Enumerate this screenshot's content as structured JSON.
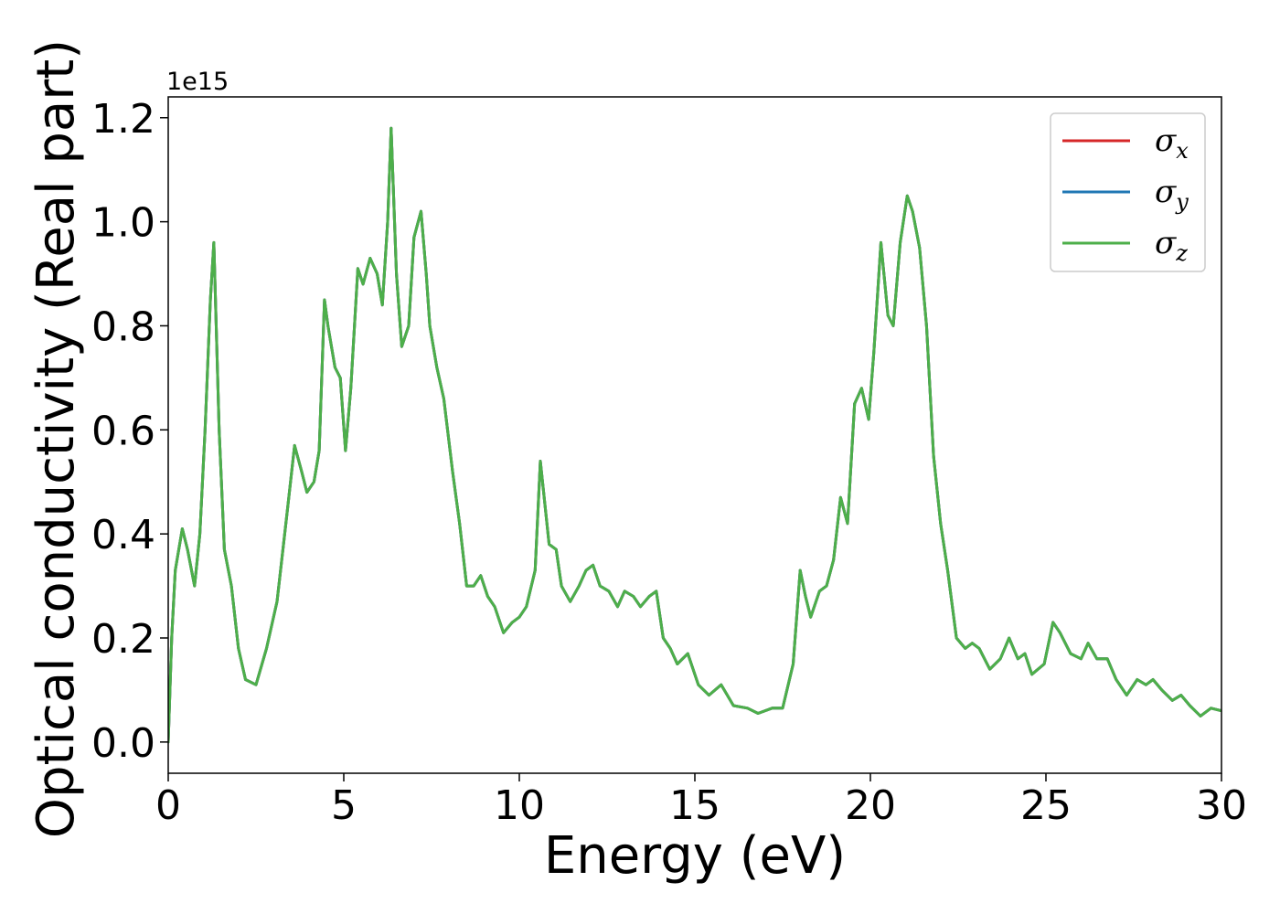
{
  "chart_data": {
    "type": "line",
    "xlabel": "Energy (eV)",
    "ylabel": "Optical conductivity (Real part)",
    "y_offset_label": "1e15",
    "y_scale_factor": 1000000000000000.0,
    "xlim": [
      0,
      30
    ],
    "ylim": [
      -0.06,
      1.24
    ],
    "x_ticks": [
      0,
      5,
      10,
      15,
      20,
      25,
      30
    ],
    "x_tick_labels": [
      "0",
      "5",
      "10",
      "15",
      "20",
      "25",
      "30"
    ],
    "y_ticks": [
      0.0,
      0.2,
      0.4,
      0.6,
      0.8,
      1.0,
      1.2
    ],
    "y_tick_labels": [
      "0.0",
      "0.2",
      "0.4",
      "0.6",
      "0.8",
      "1.0",
      "1.2"
    ],
    "grid": false,
    "legend_position": "top-right",
    "series": [
      {
        "name": "σx",
        "label_symbol": "σ",
        "label_sub": "x",
        "color": "#d62728",
        "x": [
          0,
          0.1,
          0.2,
          0.4,
          0.55,
          0.75,
          0.9,
          1.05,
          1.2,
          1.3,
          1.45,
          1.6,
          1.8,
          2.0,
          2.2,
          2.5,
          2.8,
          3.1,
          3.4,
          3.6,
          3.8,
          3.95,
          4.15,
          4.3,
          4.45,
          4.55,
          4.75,
          4.9,
          5.05,
          5.2,
          5.4,
          5.55,
          5.75,
          5.95,
          6.1,
          6.25,
          6.35,
          6.5,
          6.65,
          6.85,
          7.0,
          7.2,
          7.35,
          7.45,
          7.65,
          7.85,
          8.1,
          8.3,
          8.5,
          8.7,
          8.9,
          9.1,
          9.3,
          9.55,
          9.8,
          10.0,
          10.2,
          10.45,
          10.6,
          10.85,
          11.05,
          11.2,
          11.45,
          11.7,
          11.9,
          12.1,
          12.3,
          12.55,
          12.8,
          13.0,
          13.25,
          13.45,
          13.7,
          13.9,
          14.1,
          14.3,
          14.5,
          14.8,
          15.1,
          15.4,
          15.75,
          16.1,
          16.5,
          16.8,
          17.2,
          17.5,
          17.8,
          18.0,
          18.15,
          18.3,
          18.55,
          18.75,
          18.95,
          19.15,
          19.35,
          19.55,
          19.75,
          19.95,
          20.1,
          20.3,
          20.5,
          20.65,
          20.85,
          21.05,
          21.2,
          21.4,
          21.6,
          21.8,
          22.0,
          22.2,
          22.45,
          22.7,
          22.9,
          23.1,
          23.4,
          23.7,
          23.95,
          24.2,
          24.4,
          24.6,
          24.95,
          25.2,
          25.4,
          25.7,
          26.0,
          26.2,
          26.45,
          26.75,
          27.0,
          27.3,
          27.6,
          27.85,
          28.05,
          28.3,
          28.6,
          28.85,
          29.1,
          29.4,
          29.7,
          30.0
        ],
        "y": [
          0.0,
          0.2,
          0.33,
          0.41,
          0.37,
          0.3,
          0.4,
          0.6,
          0.85,
          0.96,
          0.6,
          0.37,
          0.3,
          0.18,
          0.12,
          0.11,
          0.18,
          0.27,
          0.45,
          0.57,
          0.52,
          0.48,
          0.5,
          0.56,
          0.85,
          0.8,
          0.72,
          0.7,
          0.56,
          0.68,
          0.91,
          0.88,
          0.93,
          0.9,
          0.84,
          1.0,
          1.18,
          0.9,
          0.76,
          0.8,
          0.97,
          1.02,
          0.9,
          0.8,
          0.72,
          0.66,
          0.52,
          0.42,
          0.3,
          0.3,
          0.32,
          0.28,
          0.26,
          0.21,
          0.23,
          0.24,
          0.26,
          0.33,
          0.54,
          0.38,
          0.37,
          0.3,
          0.27,
          0.3,
          0.33,
          0.34,
          0.3,
          0.29,
          0.26,
          0.29,
          0.28,
          0.26,
          0.28,
          0.29,
          0.2,
          0.18,
          0.15,
          0.17,
          0.11,
          0.09,
          0.11,
          0.07,
          0.065,
          0.055,
          0.065,
          0.065,
          0.15,
          0.33,
          0.28,
          0.24,
          0.29,
          0.3,
          0.35,
          0.47,
          0.42,
          0.65,
          0.68,
          0.62,
          0.75,
          0.96,
          0.82,
          0.8,
          0.96,
          1.05,
          1.02,
          0.95,
          0.8,
          0.55,
          0.42,
          0.33,
          0.2,
          0.18,
          0.19,
          0.18,
          0.14,
          0.16,
          0.2,
          0.16,
          0.17,
          0.13,
          0.15,
          0.23,
          0.21,
          0.17,
          0.16,
          0.19,
          0.16,
          0.16,
          0.12,
          0.09,
          0.12,
          0.11,
          0.12,
          0.1,
          0.08,
          0.09,
          0.07,
          0.05,
          0.065,
          0.06
        ]
      },
      {
        "name": "σy",
        "label_symbol": "σ",
        "label_sub": "y",
        "color": "#1f77b4",
        "x": [
          0,
          0.1,
          0.2,
          0.4,
          0.55,
          0.75,
          0.9,
          1.05,
          1.2,
          1.3,
          1.45,
          1.6,
          1.8,
          2.0,
          2.2,
          2.5,
          2.8,
          3.1,
          3.4,
          3.6,
          3.8,
          3.95,
          4.15,
          4.3,
          4.45,
          4.55,
          4.75,
          4.9,
          5.05,
          5.2,
          5.4,
          5.55,
          5.75,
          5.95,
          6.1,
          6.25,
          6.35,
          6.5,
          6.65,
          6.85,
          7.0,
          7.2,
          7.35,
          7.45,
          7.65,
          7.85,
          8.1,
          8.3,
          8.5,
          8.7,
          8.9,
          9.1,
          9.3,
          9.55,
          9.8,
          10.0,
          10.2,
          10.45,
          10.6,
          10.85,
          11.05,
          11.2,
          11.45,
          11.7,
          11.9,
          12.1,
          12.3,
          12.55,
          12.8,
          13.0,
          13.25,
          13.45,
          13.7,
          13.9,
          14.1,
          14.3,
          14.5,
          14.8,
          15.1,
          15.4,
          15.75,
          16.1,
          16.5,
          16.8,
          17.2,
          17.5,
          17.8,
          18.0,
          18.15,
          18.3,
          18.55,
          18.75,
          18.95,
          19.15,
          19.35,
          19.55,
          19.75,
          19.95,
          20.1,
          20.3,
          20.5,
          20.65,
          20.85,
          21.05,
          21.2,
          21.4,
          21.6,
          21.8,
          22.0,
          22.2,
          22.45,
          22.7,
          22.9,
          23.1,
          23.4,
          23.7,
          23.95,
          24.2,
          24.4,
          24.6,
          24.95,
          25.2,
          25.4,
          25.7,
          26.0,
          26.2,
          26.45,
          26.75,
          27.0,
          27.3,
          27.6,
          27.85,
          28.05,
          28.3,
          28.6,
          28.85,
          29.1,
          29.4,
          29.7,
          30.0
        ],
        "y": [
          0.0,
          0.2,
          0.33,
          0.41,
          0.37,
          0.3,
          0.4,
          0.6,
          0.85,
          0.96,
          0.6,
          0.37,
          0.3,
          0.18,
          0.12,
          0.11,
          0.18,
          0.27,
          0.45,
          0.57,
          0.52,
          0.48,
          0.5,
          0.56,
          0.85,
          0.8,
          0.72,
          0.7,
          0.56,
          0.68,
          0.91,
          0.88,
          0.93,
          0.9,
          0.84,
          1.0,
          1.18,
          0.9,
          0.76,
          0.8,
          0.97,
          1.02,
          0.9,
          0.8,
          0.72,
          0.66,
          0.52,
          0.42,
          0.3,
          0.3,
          0.32,
          0.28,
          0.26,
          0.21,
          0.23,
          0.24,
          0.26,
          0.33,
          0.54,
          0.38,
          0.37,
          0.3,
          0.27,
          0.3,
          0.33,
          0.34,
          0.3,
          0.29,
          0.26,
          0.29,
          0.28,
          0.26,
          0.28,
          0.29,
          0.2,
          0.18,
          0.15,
          0.17,
          0.11,
          0.09,
          0.11,
          0.07,
          0.065,
          0.055,
          0.065,
          0.065,
          0.15,
          0.33,
          0.28,
          0.24,
          0.29,
          0.3,
          0.35,
          0.47,
          0.42,
          0.65,
          0.68,
          0.62,
          0.75,
          0.96,
          0.82,
          0.8,
          0.96,
          1.05,
          1.02,
          0.95,
          0.8,
          0.55,
          0.42,
          0.33,
          0.2,
          0.18,
          0.19,
          0.18,
          0.14,
          0.16,
          0.2,
          0.16,
          0.17,
          0.13,
          0.15,
          0.23,
          0.21,
          0.17,
          0.16,
          0.19,
          0.16,
          0.16,
          0.12,
          0.09,
          0.12,
          0.11,
          0.12,
          0.1,
          0.08,
          0.09,
          0.07,
          0.05,
          0.065,
          0.06
        ]
      },
      {
        "name": "σz",
        "label_symbol": "σ",
        "label_sub": "z",
        "color": "#4daf4a",
        "x": [
          0,
          0.1,
          0.2,
          0.4,
          0.55,
          0.75,
          0.9,
          1.05,
          1.2,
          1.3,
          1.45,
          1.6,
          1.8,
          2.0,
          2.2,
          2.5,
          2.8,
          3.1,
          3.4,
          3.6,
          3.8,
          3.95,
          4.15,
          4.3,
          4.45,
          4.55,
          4.75,
          4.9,
          5.05,
          5.2,
          5.4,
          5.55,
          5.75,
          5.95,
          6.1,
          6.25,
          6.35,
          6.5,
          6.65,
          6.85,
          7.0,
          7.2,
          7.35,
          7.45,
          7.65,
          7.85,
          8.1,
          8.3,
          8.5,
          8.7,
          8.9,
          9.1,
          9.3,
          9.55,
          9.8,
          10.0,
          10.2,
          10.45,
          10.6,
          10.85,
          11.05,
          11.2,
          11.45,
          11.7,
          11.9,
          12.1,
          12.3,
          12.55,
          12.8,
          13.0,
          13.25,
          13.45,
          13.7,
          13.9,
          14.1,
          14.3,
          14.5,
          14.8,
          15.1,
          15.4,
          15.75,
          16.1,
          16.5,
          16.8,
          17.2,
          17.5,
          17.8,
          18.0,
          18.15,
          18.3,
          18.55,
          18.75,
          18.95,
          19.15,
          19.35,
          19.55,
          19.75,
          19.95,
          20.1,
          20.3,
          20.5,
          20.65,
          20.85,
          21.05,
          21.2,
          21.4,
          21.6,
          21.8,
          22.0,
          22.2,
          22.45,
          22.7,
          22.9,
          23.1,
          23.4,
          23.7,
          23.95,
          24.2,
          24.4,
          24.6,
          24.95,
          25.2,
          25.4,
          25.7,
          26.0,
          26.2,
          26.45,
          26.75,
          27.0,
          27.3,
          27.6,
          27.85,
          28.05,
          28.3,
          28.6,
          28.85,
          29.1,
          29.4,
          29.7,
          30.0
        ],
        "y": [
          0.0,
          0.2,
          0.33,
          0.41,
          0.37,
          0.3,
          0.4,
          0.6,
          0.85,
          0.96,
          0.6,
          0.37,
          0.3,
          0.18,
          0.12,
          0.11,
          0.18,
          0.27,
          0.45,
          0.57,
          0.52,
          0.48,
          0.5,
          0.56,
          0.85,
          0.8,
          0.72,
          0.7,
          0.56,
          0.68,
          0.91,
          0.88,
          0.93,
          0.9,
          0.84,
          1.0,
          1.18,
          0.9,
          0.76,
          0.8,
          0.97,
          1.02,
          0.9,
          0.8,
          0.72,
          0.66,
          0.52,
          0.42,
          0.3,
          0.3,
          0.32,
          0.28,
          0.26,
          0.21,
          0.23,
          0.24,
          0.26,
          0.33,
          0.54,
          0.38,
          0.37,
          0.3,
          0.27,
          0.3,
          0.33,
          0.34,
          0.3,
          0.29,
          0.26,
          0.29,
          0.28,
          0.26,
          0.28,
          0.29,
          0.2,
          0.18,
          0.15,
          0.17,
          0.11,
          0.09,
          0.11,
          0.07,
          0.065,
          0.055,
          0.065,
          0.065,
          0.15,
          0.33,
          0.28,
          0.24,
          0.29,
          0.3,
          0.35,
          0.47,
          0.42,
          0.65,
          0.68,
          0.62,
          0.75,
          0.96,
          0.82,
          0.8,
          0.96,
          1.05,
          1.02,
          0.95,
          0.8,
          0.55,
          0.42,
          0.33,
          0.2,
          0.18,
          0.19,
          0.18,
          0.14,
          0.16,
          0.2,
          0.16,
          0.17,
          0.13,
          0.15,
          0.23,
          0.21,
          0.17,
          0.16,
          0.19,
          0.16,
          0.16,
          0.12,
          0.09,
          0.12,
          0.11,
          0.12,
          0.1,
          0.08,
          0.09,
          0.07,
          0.05,
          0.065,
          0.06
        ]
      }
    ]
  }
}
